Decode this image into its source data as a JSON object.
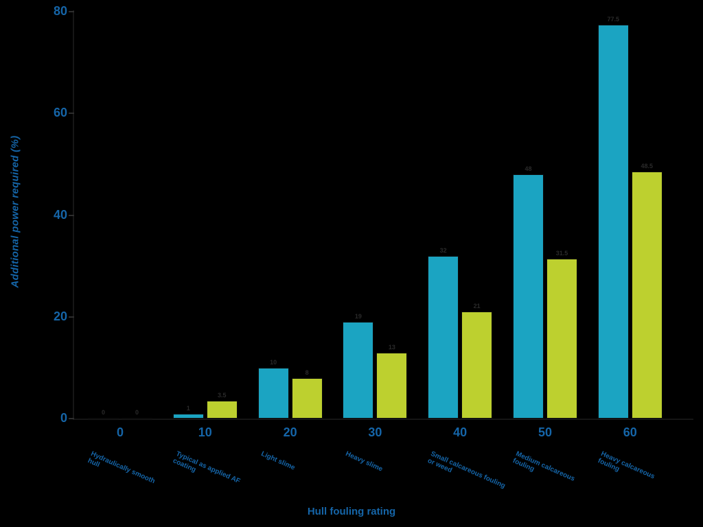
{
  "chart_data": {
    "type": "bar",
    "title": "",
    "xlabel": "Hull fouling rating",
    "ylabel": "Additional power required (%)",
    "ylim": [
      0,
      80
    ],
    "yticks": [
      0,
      20,
      40,
      60,
      80
    ],
    "grid": false,
    "legend": "none",
    "categories": [
      "0",
      "10",
      "20",
      "30",
      "40",
      "50",
      "60"
    ],
    "category_descriptions": [
      "Hydraulically smooth hull",
      "Typical as applied AF coating",
      "Light slime",
      "Heavy slime",
      "Small calcareous fouling or weed",
      "Medium calcareous fouling",
      "Heavy calcareous fouling"
    ],
    "series": [
      {
        "name": "series-teal",
        "color": "#1ba4c2",
        "values": [
          0,
          1,
          10,
          19,
          32,
          48,
          77.5
        ]
      },
      {
        "name": "series-green",
        "color": "#bdd02f",
        "values": [
          0,
          3.5,
          8,
          13,
          21,
          31.5,
          48.5
        ]
      }
    ],
    "colors": {
      "background": "#000000",
      "axis_text": "#1565a8",
      "bar_teal": "#1ba4c2",
      "bar_green": "#bdd02f"
    }
  }
}
